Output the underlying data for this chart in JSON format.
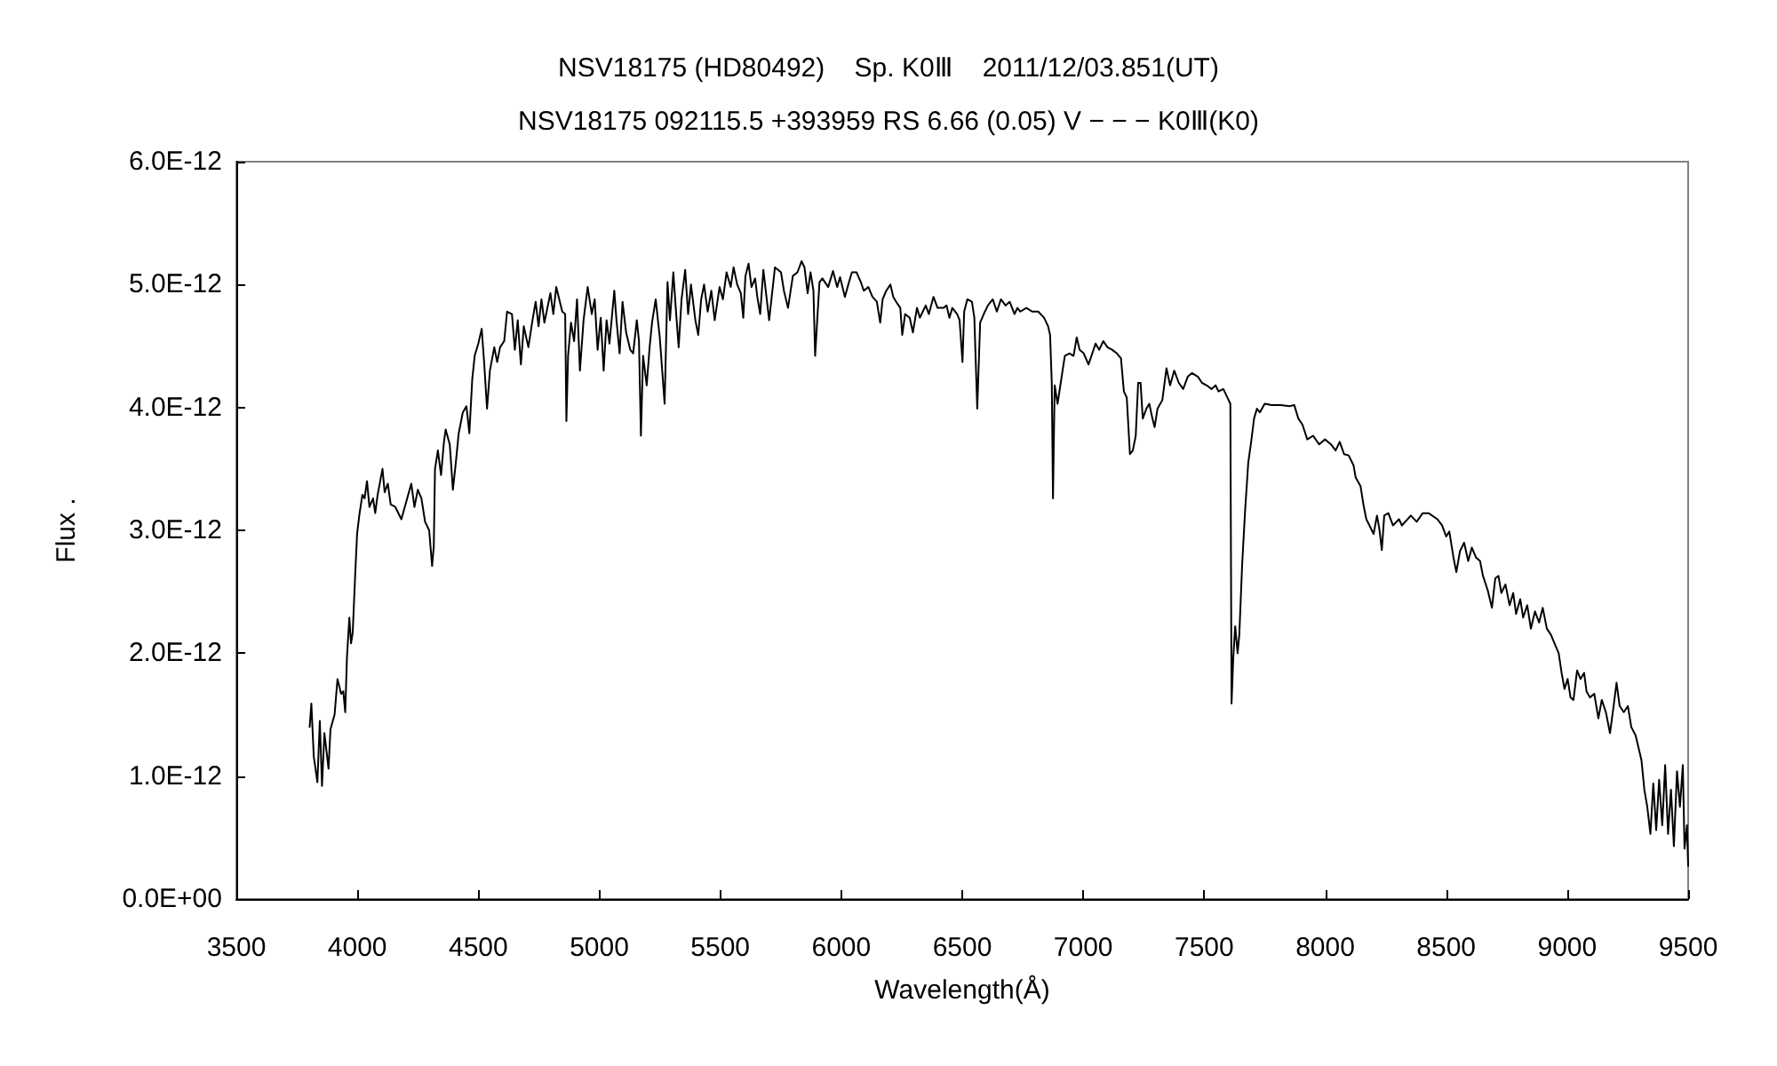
{
  "chart_data": {
    "type": "line",
    "title": "NSV18175 (HD80492)    Sp. K0Ⅲ    2011/12/03.851(UT)",
    "subtitle": "NSV18175 092115.5 +393959 RS 6.66 (0.05) V − − − K0Ⅲ(K0)",
    "xlabel": "Wavelength(Å)",
    "ylabel": "Flux .",
    "color": "#000000",
    "xlim": [
      3500,
      9500
    ],
    "xticks": [
      3500,
      4000,
      4500,
      5000,
      5500,
      6000,
      6500,
      7000,
      7500,
      8000,
      8500,
      9000,
      9500
    ],
    "ylim": [
      0,
      6e-12
    ],
    "yticks": [
      {
        "value": 0,
        "label": "0.0E+00"
      },
      {
        "value": 1e-12,
        "label": "1.0E-12"
      },
      {
        "value": 2e-12,
        "label": "2.0E-12"
      },
      {
        "value": 3e-12,
        "label": "3.0E-12"
      },
      {
        "value": 4e-12,
        "label": "4.0E-12"
      },
      {
        "value": 5e-12,
        "label": "5.0E-12"
      },
      {
        "value": 6e-12,
        "label": "6.0E-12"
      }
    ],
    "x": [
      3803,
      3810,
      3820,
      3835,
      3845,
      3854,
      3864,
      3881,
      3889,
      3906,
      3918,
      3933,
      3942,
      3950,
      3957,
      3967,
      3974,
      3981,
      3991,
      3999,
      4008,
      4021,
      4030,
      4040,
      4050,
      4065,
      4074,
      4084,
      4104,
      4113,
      4126,
      4138,
      4157,
      4182,
      4199,
      4223,
      4236,
      4250,
      4265,
      4280,
      4297,
      4309,
      4316,
      4321,
      4333,
      4346,
      4358,
      4365,
      4382,
      4395,
      4407,
      4419,
      4436,
      4451,
      4463,
      4475,
      4485,
      4500,
      4514,
      4524,
      4536,
      4548,
      4566,
      4578,
      4590,
      4607,
      4619,
      4639,
      4651,
      4663,
      4676,
      4688,
      4707,
      4724,
      4737,
      4749,
      4761,
      4773,
      4798,
      4810,
      4822,
      4847,
      4859,
      4864,
      4871,
      4883,
      4896,
      4908,
      4920,
      4935,
      4952,
      4969,
      4981,
      4993,
      5006,
      5018,
      5030,
      5042,
      5062,
      5071,
      5084,
      5096,
      5111,
      5128,
      5140,
      5155,
      5164,
      5172,
      5181,
      5196,
      5208,
      5218,
      5233,
      5250,
      5270,
      5282,
      5292,
      5306,
      5316,
      5328,
      5340,
      5355,
      5367,
      5379,
      5397,
      5409,
      5421,
      5433,
      5448,
      5463,
      5477,
      5497,
      5511,
      5526,
      5543,
      5555,
      5570,
      5585,
      5595,
      5604,
      5617,
      5629,
      5644,
      5653,
      5665,
      5678,
      5702,
      5726,
      5751,
      5763,
      5780,
      5800,
      5819,
      5836,
      5848,
      5861,
      5873,
      5885,
      5892,
      5910,
      5922,
      5946,
      5966,
      5983,
      5995,
      6015,
      6032,
      6044,
      6063,
      6081,
      6093,
      6112,
      6129,
      6147,
      6161,
      6171,
      6186,
      6203,
      6215,
      6227,
      6244,
      6252,
      6264,
      6283,
      6296,
      6313,
      6325,
      6337,
      6349,
      6362,
      6381,
      6398,
      6423,
      6435,
      6447,
      6459,
      6479,
      6489,
      6501,
      6508,
      6521,
      6540,
      6550,
      6562,
      6574,
      6589,
      6606,
      6626,
      6643,
      6660,
      6679,
      6696,
      6716,
      6728,
      6740,
      6765,
      6789,
      6814,
      6838,
      6855,
      6863,
      6870,
      6875,
      6882,
      6894,
      6907,
      6924,
      6943,
      6960,
      6973,
      6985,
      7002,
      7022,
      7034,
      7051,
      7066,
      7083,
      7100,
      7119,
      7139,
      7156,
      7168,
      7180,
      7193,
      7205,
      7217,
      7227,
      7237,
      7246,
      7261,
      7273,
      7286,
      7295,
      7307,
      7327,
      7344,
      7359,
      7376,
      7395,
      7413,
      7432,
      7449,
      7474,
      7491,
      7510,
      7530,
      7547,
      7559,
      7579,
      7596,
      7608,
      7613,
      7620,
      7628,
      7638,
      7645,
      7657,
      7669,
      7682,
      7694,
      7706,
      7718,
      7730,
      7750,
      7779,
      7816,
      7853,
      7872,
      7889,
      7906,
      7926,
      7950,
      7975,
      7999,
      8024,
      8043,
      8060,
      8078,
      8097,
      8117,
      8126,
      8146,
      8158,
      8170,
      8183,
      8200,
      8214,
      8224,
      8234,
      8244,
      8261,
      8280,
      8305,
      8317,
      8354,
      8378,
      8403,
      8427,
      8464,
      8483,
      8500,
      8513,
      8530,
      8542,
      8557,
      8574,
      8591,
      8606,
      8623,
      8640,
      8652,
      8672,
      8689,
      8703,
      8716,
      8728,
      8745,
      8762,
      8777,
      8789,
      8806,
      8818,
      8835,
      8850,
      8867,
      8884,
      8899,
      8916,
      8933,
      8948,
      8965,
      8977,
      8989,
      9002,
      9014,
      9026,
      9041,
      9055,
      9070,
      9080,
      9094,
      9112,
      9129,
      9143,
      9160,
      9177,
      9192,
      9204,
      9217,
      9234,
      9251,
      9265,
      9283,
      9295,
      9307,
      9319,
      9331,
      9344,
      9356,
      9368,
      9380,
      9393,
      9405,
      9417,
      9429,
      9441,
      9454,
      9466,
      9478,
      9485,
      9495,
      9500
    ],
    "values": [
      1.4e-12,
      1.59e-12,
      1.16e-12,
      9.5e-13,
      1.45e-12,
      9.2e-13,
      1.35e-12,
      1.06e-12,
      1.38e-12,
      1.5e-12,
      1.79e-12,
      1.67e-12,
      1.69e-12,
      1.52e-12,
      1.96e-12,
      2.29e-12,
      2.08e-12,
      2.17e-12,
      2.63e-12,
      2.97e-12,
      3.12e-12,
      3.29e-12,
      3.26e-12,
      3.4e-12,
      3.19e-12,
      3.26e-12,
      3.14e-12,
      3.29e-12,
      3.5e-12,
      3.31e-12,
      3.38e-12,
      3.21e-12,
      3.19e-12,
      3.09e-12,
      3.21e-12,
      3.38e-12,
      3.19e-12,
      3.33e-12,
      3.26e-12,
      3.07e-12,
      3e-12,
      2.71e-12,
      2.87e-12,
      3.5e-12,
      3.65e-12,
      3.45e-12,
      3.72e-12,
      3.82e-12,
      3.7e-12,
      3.33e-12,
      3.55e-12,
      3.79e-12,
      3.96e-12,
      4.01e-12,
      3.79e-12,
      4.23e-12,
      4.42e-12,
      4.52e-12,
      4.64e-12,
      4.37e-12,
      3.99e-12,
      4.3e-12,
      4.49e-12,
      4.37e-12,
      4.49e-12,
      4.54e-12,
      4.78e-12,
      4.76e-12,
      4.47e-12,
      4.71e-12,
      4.35e-12,
      4.66e-12,
      4.49e-12,
      4.71e-12,
      4.86e-12,
      4.66e-12,
      4.88e-12,
      4.69e-12,
      4.93e-12,
      4.76e-12,
      4.98e-12,
      4.78e-12,
      4.76e-12,
      3.89e-12,
      4.42e-12,
      4.69e-12,
      4.54e-12,
      4.88e-12,
      4.3e-12,
      4.71e-12,
      4.98e-12,
      4.76e-12,
      4.88e-12,
      4.47e-12,
      4.73e-12,
      4.3e-12,
      4.71e-12,
      4.52e-12,
      4.95e-12,
      4.71e-12,
      4.44e-12,
      4.86e-12,
      4.61e-12,
      4.47e-12,
      4.44e-12,
      4.71e-12,
      4.54e-12,
      3.77e-12,
      4.42e-12,
      4.18e-12,
      4.49e-12,
      4.69e-12,
      4.88e-12,
      4.57e-12,
      4.03e-12,
      5.02e-12,
      4.71e-12,
      5.1e-12,
      4.81e-12,
      4.49e-12,
      4.88e-12,
      5.12e-12,
      4.76e-12,
      5e-12,
      4.71e-12,
      4.59e-12,
      4.88e-12,
      5e-12,
      4.78e-12,
      4.95e-12,
      4.71e-12,
      4.98e-12,
      4.88e-12,
      5.1e-12,
      4.98e-12,
      5.14e-12,
      5e-12,
      4.93e-12,
      4.73e-12,
      5.07e-12,
      5.17e-12,
      4.98e-12,
      5.05e-12,
      4.9e-12,
      4.76e-12,
      5.12e-12,
      4.71e-12,
      5.14e-12,
      5.1e-12,
      4.95e-12,
      4.81e-12,
      5.07e-12,
      5.1e-12,
      5.19e-12,
      5.14e-12,
      4.93e-12,
      5.1e-12,
      4.95e-12,
      4.42e-12,
      5.02e-12,
      5.05e-12,
      4.98e-12,
      5.11e-12,
      4.98e-12,
      5.06e-12,
      4.9e-12,
      5.02e-12,
      5.1e-12,
      5.1e-12,
      5.02e-12,
      4.95e-12,
      4.98e-12,
      4.9e-12,
      4.86e-12,
      4.69e-12,
      4.88e-12,
      4.95e-12,
      5e-12,
      4.9e-12,
      4.86e-12,
      4.81e-12,
      4.59e-12,
      4.76e-12,
      4.73e-12,
      4.61e-12,
      4.81e-12,
      4.73e-12,
      4.78e-12,
      4.83e-12,
      4.76e-12,
      4.9e-12,
      4.81e-12,
      4.81e-12,
      4.83e-12,
      4.73e-12,
      4.81e-12,
      4.76e-12,
      4.71e-12,
      4.37e-12,
      4.78e-12,
      4.88e-12,
      4.86e-12,
      4.73e-12,
      3.99e-12,
      4.69e-12,
      4.76e-12,
      4.83e-12,
      4.88e-12,
      4.78e-12,
      4.88e-12,
      4.83e-12,
      4.86e-12,
      4.76e-12,
      4.81e-12,
      4.78e-12,
      4.81e-12,
      4.78e-12,
      4.78e-12,
      4.73e-12,
      4.66e-12,
      4.59e-12,
      4.2e-12,
      3.26e-12,
      4.18e-12,
      4.03e-12,
      4.2e-12,
      4.42e-12,
      4.44e-12,
      4.42e-12,
      4.57e-12,
      4.47e-12,
      4.44e-12,
      4.35e-12,
      4.42e-12,
      4.52e-12,
      4.47e-12,
      4.54e-12,
      4.49e-12,
      4.47e-12,
      4.44e-12,
      4.4e-12,
      4.13e-12,
      4.08e-12,
      3.62e-12,
      3.65e-12,
      3.77e-12,
      4.2e-12,
      4.2e-12,
      3.91e-12,
      3.99e-12,
      4.03e-12,
      3.91e-12,
      3.84e-12,
      3.99e-12,
      4.06e-12,
      4.32e-12,
      4.18e-12,
      4.3e-12,
      4.2e-12,
      4.15e-12,
      4.25e-12,
      4.28e-12,
      4.25e-12,
      4.2e-12,
      4.18e-12,
      4.15e-12,
      4.18e-12,
      4.13e-12,
      4.15e-12,
      4.08e-12,
      4.03e-12,
      1.59e-12,
      1.96e-12,
      2.22e-12,
      2e-12,
      2.15e-12,
      2.73e-12,
      3.16e-12,
      3.55e-12,
      3.72e-12,
      3.91e-12,
      3.99e-12,
      3.96e-12,
      4.03e-12,
      4.02e-12,
      4.02e-12,
      4.01e-12,
      4.02e-12,
      3.91e-12,
      3.86e-12,
      3.74e-12,
      3.77e-12,
      3.7e-12,
      3.74e-12,
      3.7e-12,
      3.65e-12,
      3.72e-12,
      3.62e-12,
      3.61e-12,
      3.53e-12,
      3.43e-12,
      3.36e-12,
      3.21e-12,
      3.09e-12,
      3.04e-12,
      2.97e-12,
      3.12e-12,
      3.01e-12,
      2.84e-12,
      3.12e-12,
      3.14e-12,
      3.04e-12,
      3.09e-12,
      3.04e-12,
      3.12e-12,
      3.07e-12,
      3.14e-12,
      3.14e-12,
      3.09e-12,
      3.04e-12,
      2.95e-12,
      2.99e-12,
      2.78e-12,
      2.66e-12,
      2.83e-12,
      2.9e-12,
      2.75e-12,
      2.86e-12,
      2.78e-12,
      2.75e-12,
      2.63e-12,
      2.51e-12,
      2.37e-12,
      2.61e-12,
      2.63e-12,
      2.49e-12,
      2.56e-12,
      2.39e-12,
      2.49e-12,
      2.32e-12,
      2.44e-12,
      2.29e-12,
      2.39e-12,
      2.2e-12,
      2.34e-12,
      2.25e-12,
      2.37e-12,
      2.2e-12,
      2.15e-12,
      2.08e-12,
      2e-12,
      1.84e-12,
      1.71e-12,
      1.79e-12,
      1.64e-12,
      1.62e-12,
      1.86e-12,
      1.79e-12,
      1.84e-12,
      1.69e-12,
      1.64e-12,
      1.67e-12,
      1.47e-12,
      1.62e-12,
      1.52e-12,
      1.35e-12,
      1.57e-12,
      1.76e-12,
      1.57e-12,
      1.52e-12,
      1.57e-12,
      1.4e-12,
      1.33e-12,
      1.23e-12,
      1.13e-12,
      8.9e-13,
      7.5e-13,
      5.3e-13,
      9.4e-13,
      5.6e-13,
      9.7e-13,
      6e-13,
      1.09e-12,
      5.3e-13,
      8.9e-13,
      4.3e-13,
      1.04e-12,
      7.5e-13,
      1.09e-12,
      4.1e-13,
      6e-13,
      2.7e-13
    ]
  }
}
